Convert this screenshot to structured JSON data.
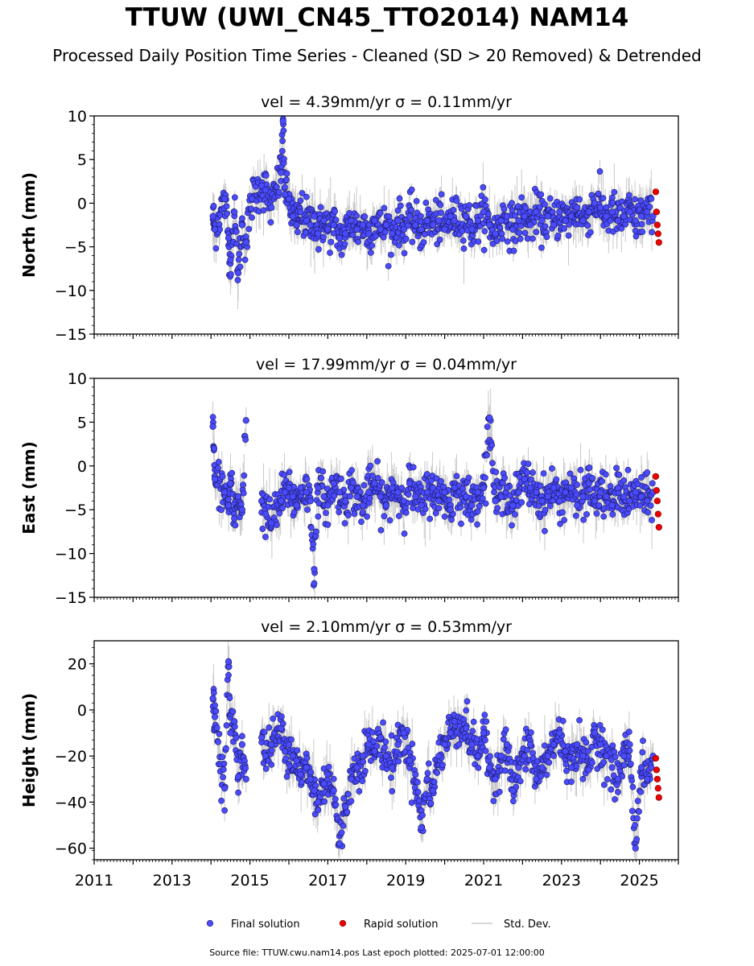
{
  "figure": {
    "title": "TTUW (UWI_CN45_TTO2014) NAM14",
    "subtitle": "Processed Daily Position Time Series - Cleaned (SD > 20 Removed) & Detrended",
    "source_note": "Source file: TTUW.cwu.nam14.pos  Last epoch plotted: 2025-07-01 12:00:00"
  },
  "legend": {
    "placement": "bottom-center",
    "items": [
      {
        "label": "Final solution",
        "color": "#4a4aff",
        "marker": "circle"
      },
      {
        "label": "Rapid solution",
        "color": "#ee0000",
        "marker": "circle"
      },
      {
        "label": "Std. Dev.",
        "color": "#cccccc",
        "marker": "line"
      }
    ]
  },
  "colors": {
    "final": "#4a4aff",
    "final_edge": "#1a1a60",
    "rapid": "#ee0000",
    "errorbar": "#c8c8c8",
    "axis": "#000000"
  },
  "chart_data": [
    {
      "type": "scatter",
      "panel_title": "vel = 4.39mm/yr   σ = 0.11mm/yr",
      "ylabel": "North (mm)",
      "xlim": [
        2011.0,
        2026.0
      ],
      "ylim": [
        -15,
        10
      ],
      "yticks": [
        -15,
        -10,
        -5,
        0,
        5,
        10
      ],
      "ytick_labels": [
        "−15",
        "−10",
        "−5",
        "0",
        "5",
        "10"
      ],
      "grid": false,
      "series": [
        {
          "name": "Final solution",
          "x": [
            2014.05,
            2014.1,
            2014.35,
            2014.45,
            2014.5,
            2014.6,
            2014.7,
            2014.8,
            2014.9,
            2015.05,
            2015.3,
            2015.4,
            2015.55,
            2015.8,
            2015.85,
            2015.9,
            2016.0,
            2016.1,
            2016.2,
            2016.3,
            2016.45,
            2016.55,
            2016.65,
            2016.75,
            2016.9,
            2017.0,
            2017.15,
            2017.3,
            2017.45,
            2017.6,
            2017.75,
            2017.9,
            2018.05,
            2018.2,
            2018.35,
            2018.5,
            2018.65,
            2018.8,
            2018.95,
            2019.1,
            2019.25,
            2019.4,
            2019.55,
            2019.7,
            2019.85,
            2020.0,
            2020.15,
            2020.25,
            2020.55,
            2020.7,
            2020.85,
            2021.0,
            2021.15,
            2021.3,
            2021.45,
            2021.6,
            2021.75,
            2021.9,
            2022.05,
            2022.2,
            2022.35,
            2022.5,
            2022.65,
            2022.8,
            2022.95,
            2023.1,
            2023.25,
            2023.4,
            2023.55,
            2023.7,
            2023.85,
            2024.0,
            2024.15,
            2024.3,
            2024.45,
            2024.6,
            2024.75,
            2024.9,
            2025.05,
            2025.2,
            2025.35
          ],
          "y": [
            -1.5,
            -3.0,
            0.5,
            -4.0,
            -6.5,
            -1.0,
            -8.0,
            -2.5,
            -4.5,
            0.5,
            2.0,
            1.5,
            -0.5,
            3.5,
            9.4,
            1.0,
            0.5,
            -1.5,
            -2.5,
            -1.0,
            -2.0,
            -2.5,
            -1.5,
            -3.5,
            -2.0,
            -3.0,
            -2.5,
            -4.0,
            -3.5,
            -2.0,
            -3.0,
            -2.5,
            -3.5,
            -2.0,
            -3.0,
            -2.5,
            -3.5,
            -2.0,
            -3.0,
            -1.5,
            -2.5,
            -3.0,
            -2.0,
            -2.5,
            -2.0,
            -3.0,
            -1.5,
            -2.0,
            -1.5,
            -3.0,
            -2.0,
            -1.0,
            -2.5,
            -3.5,
            -2.0,
            -1.5,
            -3.0,
            -2.0,
            -1.5,
            -2.5,
            -1.0,
            -2.0,
            -1.5,
            -2.5,
            -1.0,
            -2.0,
            -1.5,
            -0.5,
            -2.0,
            -1.0,
            0.0,
            -0.5,
            -1.5,
            -1.0,
            -2.0,
            -1.5,
            -1.0,
            -2.0,
            -1.5,
            -1.0,
            -1.5
          ]
        },
        {
          "name": "Rapid solution",
          "x": [
            2025.42,
            2025.44,
            2025.46,
            2025.48,
            2025.5
          ],
          "y": [
            1.3,
            -1.0,
            -2.5,
            -3.5,
            -4.5
          ]
        }
      ]
    },
    {
      "type": "scatter",
      "panel_title": "vel = 17.99mm/yr   σ = 0.04mm/yr",
      "ylabel": "East (mm)",
      "xlim": [
        2011.0,
        2026.0
      ],
      "ylim": [
        -15,
        10
      ],
      "yticks": [
        -15,
        -10,
        -5,
        0,
        5,
        10
      ],
      "ytick_labels": [
        "−15",
        "−10",
        "−5",
        "0",
        "5",
        "10"
      ],
      "grid": false,
      "series": [
        {
          "name": "Final solution",
          "x": [
            2014.05,
            2014.1,
            2014.35,
            2014.45,
            2014.5,
            2014.6,
            2014.7,
            2014.8,
            2014.9,
            2015.3,
            2015.4,
            2015.55,
            2015.8,
            2015.9,
            2016.0,
            2016.1,
            2016.2,
            2016.3,
            2016.45,
            2016.55,
            2016.65,
            2016.75,
            2016.9,
            2017.0,
            2017.15,
            2017.3,
            2017.45,
            2017.6,
            2017.75,
            2017.9,
            2018.05,
            2018.2,
            2018.35,
            2018.5,
            2018.65,
            2018.8,
            2018.95,
            2019.1,
            2019.25,
            2019.4,
            2019.55,
            2019.7,
            2019.85,
            2020.0,
            2020.15,
            2020.25,
            2020.55,
            2020.7,
            2020.85,
            2021.0,
            2021.15,
            2021.3,
            2021.45,
            2021.6,
            2021.75,
            2021.9,
            2022.05,
            2022.2,
            2022.35,
            2022.5,
            2022.65,
            2022.8,
            2022.95,
            2023.1,
            2023.25,
            2023.4,
            2023.55,
            2023.7,
            2023.85,
            2024.0,
            2024.15,
            2024.3,
            2024.45,
            2024.6,
            2024.75,
            2024.9,
            2025.05,
            2025.2,
            2025.35
          ],
          "y": [
            4.5,
            -1.5,
            -3.0,
            -4.5,
            -2.0,
            -6.0,
            -3.5,
            -5.0,
            5.2,
            -4.0,
            -5.5,
            -6.5,
            -4.0,
            -3.0,
            -2.5,
            -3.5,
            -4.5,
            -2.5,
            -3.0,
            -4.0,
            -11.8,
            -2.5,
            -3.5,
            -4.5,
            -2.0,
            -3.0,
            -4.0,
            -2.5,
            -3.5,
            -4.5,
            -3.0,
            -2.0,
            -3.5,
            -4.5,
            -2.5,
            -3.0,
            -4.0,
            -2.0,
            -3.5,
            -4.5,
            -3.0,
            -2.5,
            -4.0,
            -3.0,
            -5.0,
            -2.5,
            -3.5,
            -4.5,
            -3.0,
            -2.5,
            5.5,
            -4.0,
            -3.5,
            -2.5,
            -4.5,
            -3.0,
            -1.5,
            -2.5,
            -3.0,
            -4.0,
            -3.5,
            -2.5,
            -4.0,
            -3.0,
            -2.5,
            -4.5,
            -3.5,
            -2.0,
            -4.0,
            -3.0,
            -3.5,
            -4.5,
            -2.5,
            -3.5,
            -4.0,
            -3.0,
            -3.5,
            -4.0,
            -3.0
          ]
        },
        {
          "name": "Rapid solution",
          "x": [
            2025.42,
            2025.44,
            2025.46,
            2025.48,
            2025.5
          ],
          "y": [
            -1.2,
            -2.8,
            -4.0,
            -5.5,
            -7.0
          ]
        }
      ]
    },
    {
      "type": "scatter",
      "panel_title": "vel = 2.10mm/yr   σ = 0.53mm/yr",
      "ylabel": "Height (mm)",
      "xlabel": "",
      "xlim": [
        2011.0,
        2026.0
      ],
      "ylim": [
        -65,
        30
      ],
      "yticks": [
        -60,
        -40,
        -20,
        0,
        20
      ],
      "ytick_labels": [
        "−60",
        "−40",
        "−20",
        "0",
        "20"
      ],
      "xticks": [
        2011,
        2013,
        2015,
        2017,
        2019,
        2021,
        2023,
        2025
      ],
      "xtick_labels": [
        "2011",
        "2013",
        "2015",
        "2017",
        "2019",
        "2021",
        "2023",
        "2025"
      ],
      "grid": false,
      "series": [
        {
          "name": "Final solution",
          "x": [
            2014.05,
            2014.1,
            2014.35,
            2014.45,
            2014.5,
            2014.6,
            2014.7,
            2014.8,
            2014.9,
            2015.3,
            2015.4,
            2015.55,
            2015.8,
            2015.9,
            2016.0,
            2016.1,
            2016.2,
            2016.3,
            2016.45,
            2016.55,
            2016.65,
            2016.75,
            2016.9,
            2017.0,
            2017.15,
            2017.3,
            2017.45,
            2017.6,
            2017.75,
            2017.9,
            2018.05,
            2018.2,
            2018.35,
            2018.5,
            2018.65,
            2018.8,
            2018.95,
            2019.1,
            2019.25,
            2019.4,
            2019.55,
            2019.7,
            2019.85,
            2020.0,
            2020.15,
            2020.25,
            2020.55,
            2020.7,
            2020.85,
            2021.0,
            2021.15,
            2021.3,
            2021.45,
            2021.6,
            2021.75,
            2021.9,
            2022.05,
            2022.2,
            2022.35,
            2022.5,
            2022.65,
            2022.8,
            2022.95,
            2023.1,
            2023.25,
            2023.4,
            2023.55,
            2023.7,
            2023.85,
            2024.0,
            2024.15,
            2024.3,
            2024.45,
            2024.6,
            2024.75,
            2024.9,
            2025.05,
            2025.2,
            2025.35
          ],
          "y": [
            5,
            -3,
            -34,
            21,
            -10,
            -5,
            -29,
            -15,
            -30,
            -12,
            -20,
            -15,
            -8,
            -18,
            -15,
            -20,
            -22,
            -28,
            -25,
            -30,
            -35,
            -40,
            -32,
            -28,
            -35,
            -58,
            -42,
            -30,
            -25,
            -20,
            -15,
            -18,
            -12,
            -20,
            -25,
            -15,
            -10,
            -22,
            -28,
            -51,
            -30,
            -35,
            -20,
            -15,
            -10,
            -5,
            -8,
            -15,
            -20,
            -10,
            -25,
            -30,
            -20,
            -15,
            -35,
            -25,
            -20,
            -15,
            -30,
            -25,
            -20,
            -15,
            -10,
            -18,
            -25,
            -15,
            -20,
            -26,
            -10,
            -15,
            -20,
            -25,
            -30,
            -20,
            -15,
            -60,
            -25,
            -30,
            -20
          ]
        },
        {
          "name": "Rapid solution",
          "x": [
            2025.42,
            2025.44,
            2025.46,
            2025.48,
            2025.5
          ],
          "y": [
            -21,
            -26,
            -30,
            -34,
            -38
          ]
        }
      ]
    }
  ]
}
